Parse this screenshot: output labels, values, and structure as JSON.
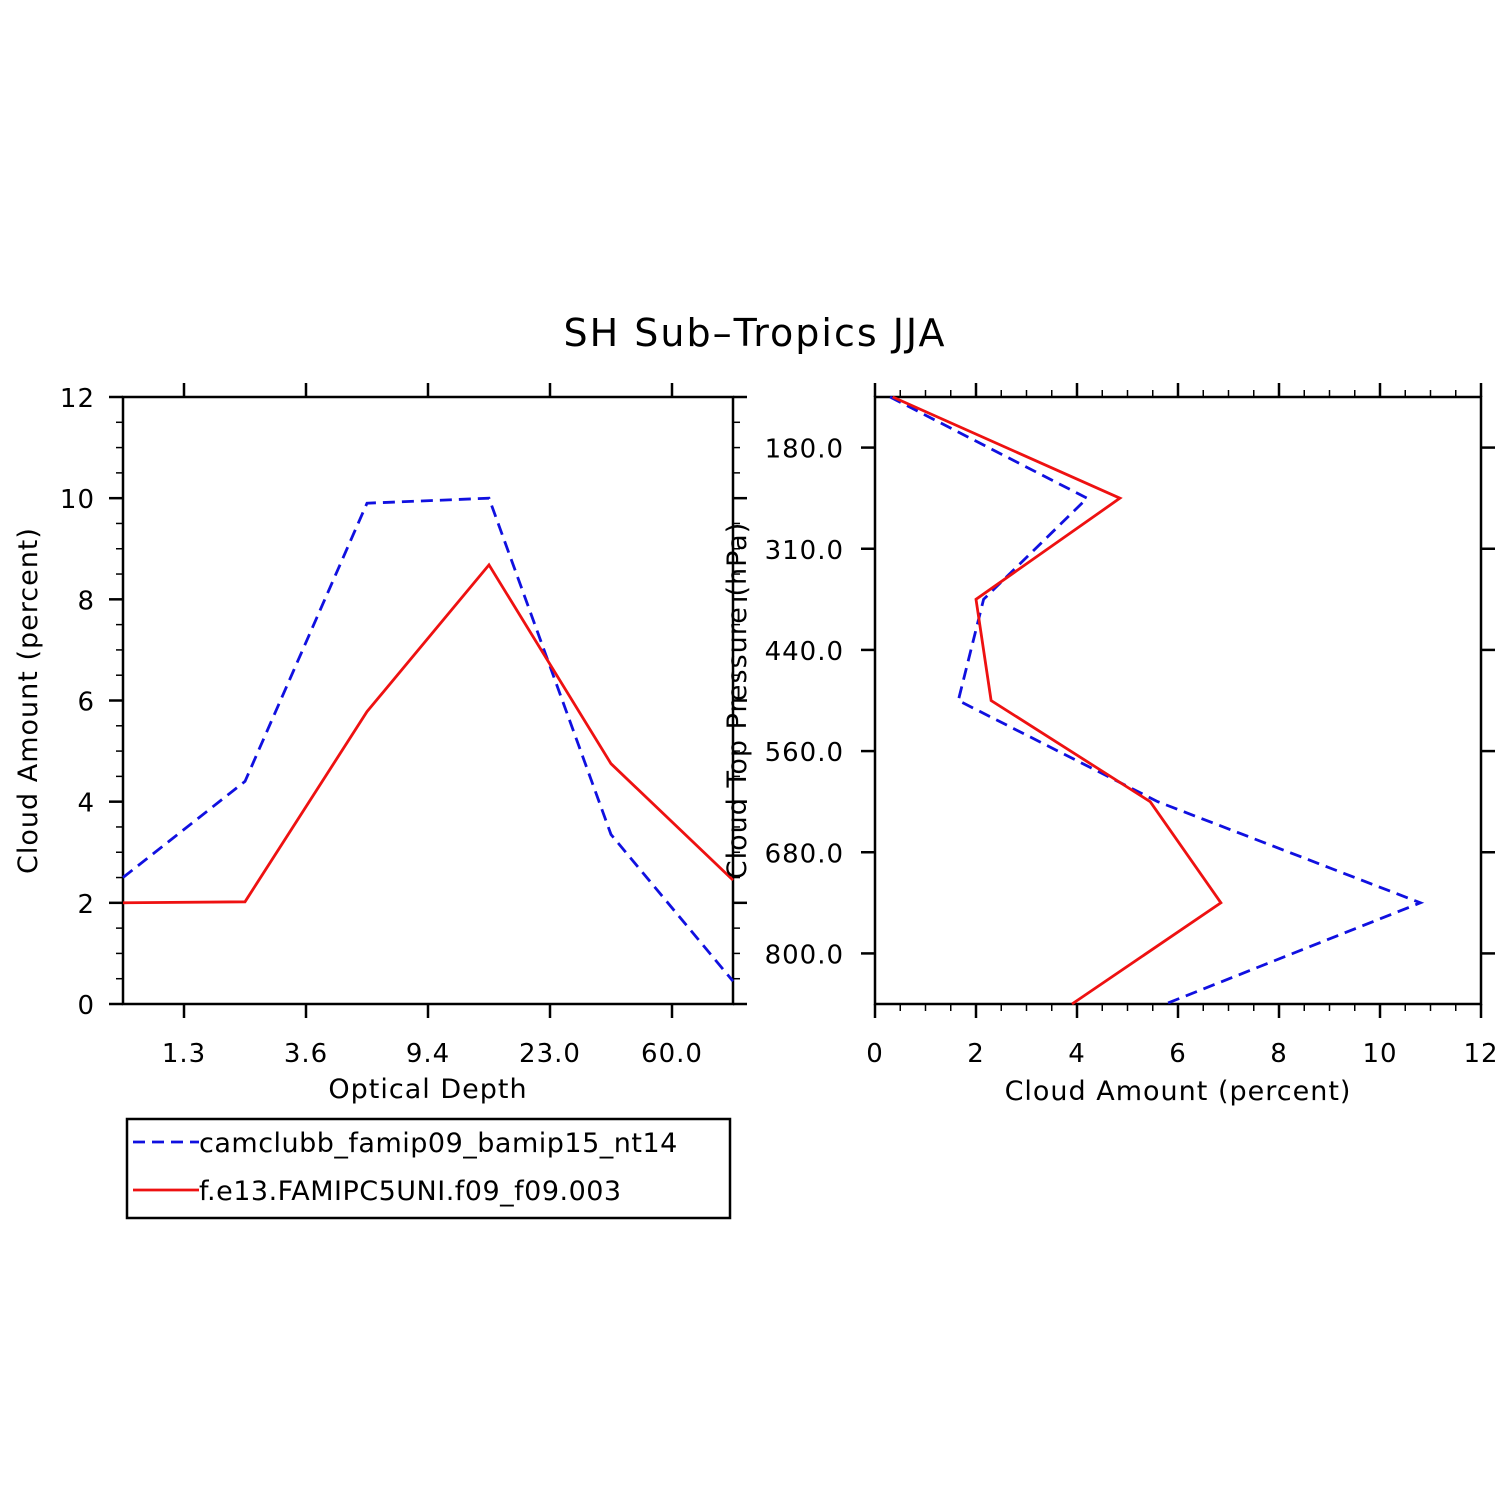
{
  "title": "SH Sub–Tropics JJA",
  "colors": {
    "series1": "#1010e0",
    "series2": "#ee1111"
  },
  "legend": {
    "entries": [
      {
        "label": "camclubb_famip09_bamip15_nt14",
        "style": "dashed"
      },
      {
        "label": "f.e13.FAMIPC5UNI.f09_f09.003",
        "style": "solid"
      }
    ]
  },
  "chart_data": [
    {
      "type": "line",
      "xlabel": "Optical Depth",
      "ylabel": "Cloud Amount (percent)",
      "x_tick_labels": [
        "1.3",
        "3.6",
        "9.4",
        "23.0",
        "60.0"
      ],
      "x_tick_positions": [
        1,
        2,
        3,
        4,
        5
      ],
      "x_categories_index": [
        0.5,
        1.5,
        2.5,
        3.5,
        4.5,
        5.5
      ],
      "xlim": [
        0.5,
        5.5
      ],
      "ylim": [
        0,
        12
      ],
      "y_ticks": [
        0,
        2,
        4,
        6,
        8,
        10,
        12
      ],
      "series": [
        {
          "name": "camclubb_famip09_bamip15_nt14",
          "style": "dashed",
          "values": [
            2.5,
            4.4,
            9.9,
            10.0,
            3.35,
            0.45
          ]
        },
        {
          "name": "f.e13.FAMIPC5UNI.f09_f09.003",
          "style": "solid",
          "values": [
            2.0,
            2.02,
            5.78,
            8.68,
            4.75,
            2.45
          ]
        }
      ]
    },
    {
      "type": "line",
      "xlabel": "Cloud Amount (percent)",
      "ylabel": "Cloud Top Pressure (hPa)",
      "y_tick_labels": [
        "180.0",
        "310.0",
        "440.0",
        "560.0",
        "680.0",
        "800.0"
      ],
      "y_tick_positions": [
        1,
        2,
        3,
        4,
        5,
        6
      ],
      "y_level_index": [
        0.5,
        1.5,
        2.5,
        3.5,
        4.5,
        5.5,
        6.5
      ],
      "ylim": [
        0.5,
        6.5
      ],
      "y_reversed": true,
      "xlim": [
        0,
        12
      ],
      "x_ticks": [
        0,
        2,
        4,
        6,
        8,
        10,
        12
      ],
      "series": [
        {
          "name": "camclubb_famip09_bamip15_nt14",
          "style": "dashed",
          "values": [
            0.3,
            4.2,
            2.15,
            1.65,
            5.6,
            10.8,
            5.75
          ]
        },
        {
          "name": "f.e13.FAMIPC5UNI.f09_f09.003",
          "style": "solid",
          "values": [
            0.35,
            4.85,
            2.0,
            2.3,
            5.45,
            6.85,
            3.9
          ]
        }
      ]
    }
  ]
}
